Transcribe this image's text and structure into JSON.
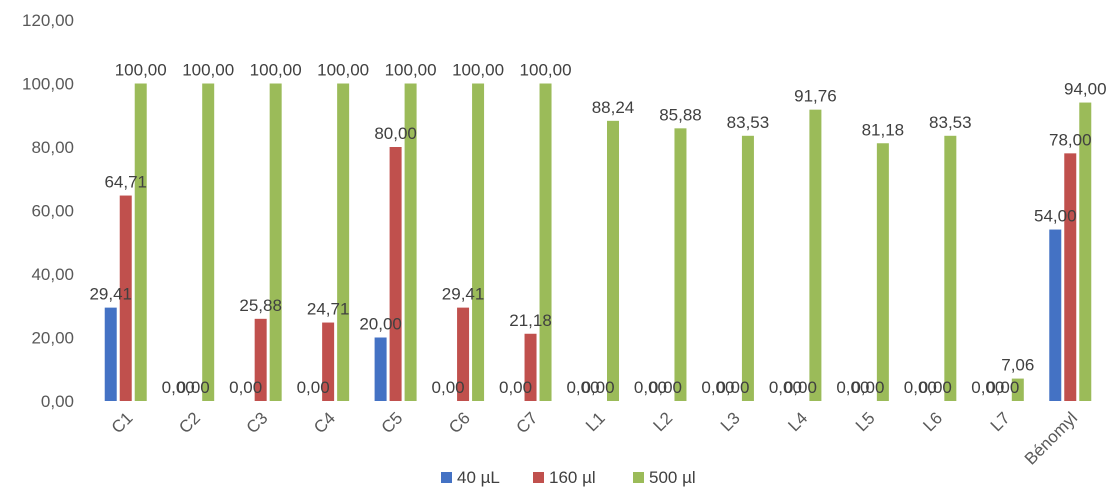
{
  "chart_data": {
    "type": "bar",
    "categories": [
      "C1",
      "C2",
      "C3",
      "C4",
      "C5",
      "C6",
      "C7",
      "L1",
      "L2",
      "L3",
      "L4",
      "L5",
      "L6",
      "L7",
      "Bénomyl"
    ],
    "series": [
      {
        "name": "40 µL",
        "color": "#4472c4",
        "values": [
          29.41,
          0,
          0,
          0,
          20.0,
          0,
          0,
          0,
          0,
          0,
          0,
          0,
          0,
          0,
          54.0
        ],
        "labels": [
          "",
          "0,00",
          "0,00",
          "0,00",
          "",
          "0,00",
          "0,00",
          "0,00",
          "0,00",
          "0,00",
          "0,00",
          "0,00",
          "0,00",
          "0,00",
          "54,00"
        ]
      },
      {
        "name": "160 µl",
        "color": "#c0504d",
        "values": [
          64.71,
          0,
          25.88,
          24.71,
          80.0,
          29.41,
          21.18,
          0,
          0,
          0,
          0,
          0,
          0,
          0,
          78.0
        ],
        "labels": [
          "64,71",
          "0,00",
          "25,88",
          "24,71",
          "80,00",
          "29,41",
          "21,18",
          "0,00",
          "0,00",
          "0,00",
          "0,00",
          "0,00",
          "0,00",
          "0,00",
          "78,00"
        ]
      },
      {
        "name": "500 µl",
        "color": "#9bbb59",
        "values": [
          100,
          100,
          100,
          100,
          100,
          100,
          100,
          88.24,
          85.88,
          83.53,
          91.76,
          81.18,
          83.53,
          7.06,
          94.0
        ],
        "labels": [
          "100,00",
          "100,00",
          "100,00",
          "100,00",
          "100,00",
          "100,00",
          "100,00",
          "88,24",
          "85,88",
          "83,53",
          "91,76",
          "81,18",
          "83,53",
          "7,06",
          "94,00"
        ]
      }
    ],
    "extra_labels": [
      {
        "category": "C1",
        "series": 0,
        "text": "29,41"
      },
      {
        "category": "C5",
        "series": 0,
        "text": "20,00"
      }
    ],
    "ylim": [
      0,
      120
    ],
    "yticks": [
      "0,00",
      "20,00",
      "40,00",
      "60,00",
      "80,00",
      "100,00",
      "120,00"
    ],
    "ytick_values": [
      0,
      20,
      40,
      60,
      80,
      100,
      120
    ],
    "grid": false,
    "legend_position": "bottom",
    "title": "",
    "xlabel": "",
    "ylabel": ""
  }
}
